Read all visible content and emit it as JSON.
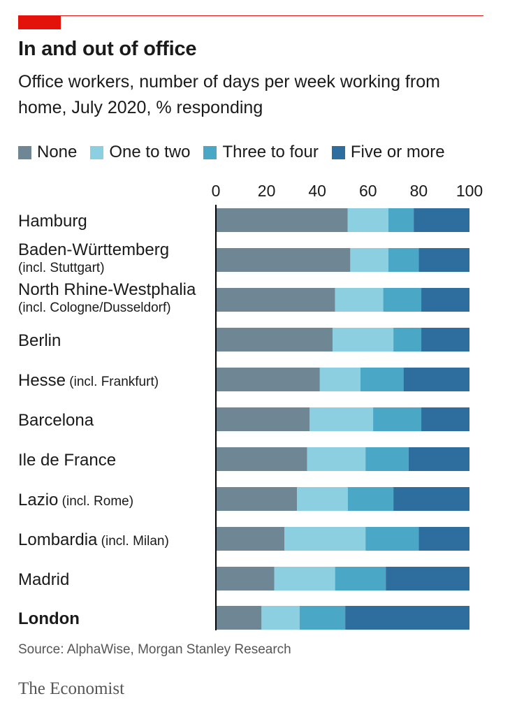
{
  "title": "In and out of office",
  "subtitle": "Office workers, number of days per week working from home, July 2020, % responding",
  "legend": [
    "None",
    "One to two",
    "Three to four",
    "Five or more"
  ],
  "colors": {
    "accent": "#e3120b",
    "none": "#6f8795",
    "one_to_two": "#8ccfe0",
    "three_to_four": "#4aa8c6",
    "five_or_more": "#2e6e9e",
    "axis": "#000000"
  },
  "source": "Source: AlphaWise, Morgan Stanley Research",
  "brand": "The Economist",
  "chart_data": {
    "type": "bar",
    "orientation": "horizontal",
    "stacked": true,
    "title": "In and out of office",
    "subtitle": "Office workers, number of days per week working from home, July 2020, % responding",
    "xlim": [
      0,
      100
    ],
    "xticks": [
      0,
      20,
      40,
      60,
      80,
      100
    ],
    "xaxis_position": "top",
    "legend_position": "top",
    "grid": false,
    "categories": [
      {
        "label": "Hamburg",
        "note": ""
      },
      {
        "label": "Baden-Württemberg",
        "note": "(incl. Stuttgart)"
      },
      {
        "label": "North Rhine-Westphalia",
        "note": "(incl. Cologne/Dusseldorf)"
      },
      {
        "label": "Berlin",
        "note": ""
      },
      {
        "label": "Hesse",
        "note": "(incl. Frankfurt)"
      },
      {
        "label": "Barcelona",
        "note": ""
      },
      {
        "label": "Ile de France",
        "note": ""
      },
      {
        "label": "Lazio",
        "note": "(incl. Rome)"
      },
      {
        "label": "Lombardia",
        "note": "(incl. Milan)"
      },
      {
        "label": "Madrid",
        "note": ""
      },
      {
        "label": "London",
        "note": "",
        "bold": true
      }
    ],
    "series": [
      {
        "name": "None",
        "color": "#6f8795",
        "values": [
          52,
          53,
          47,
          46,
          41,
          37,
          36,
          32,
          27,
          23,
          18
        ]
      },
      {
        "name": "One to two",
        "color": "#8ccfe0",
        "values": [
          16,
          15,
          19,
          24,
          16,
          25,
          23,
          20,
          32,
          24,
          15
        ]
      },
      {
        "name": "Three to four",
        "color": "#4aa8c6",
        "values": [
          10,
          12,
          15,
          11,
          17,
          19,
          17,
          18,
          21,
          20,
          18
        ]
      },
      {
        "name": "Five or more",
        "color": "#2e6e9e",
        "values": [
          22,
          20,
          19,
          19,
          26,
          19,
          24,
          30,
          20,
          33,
          49
        ]
      }
    ]
  }
}
